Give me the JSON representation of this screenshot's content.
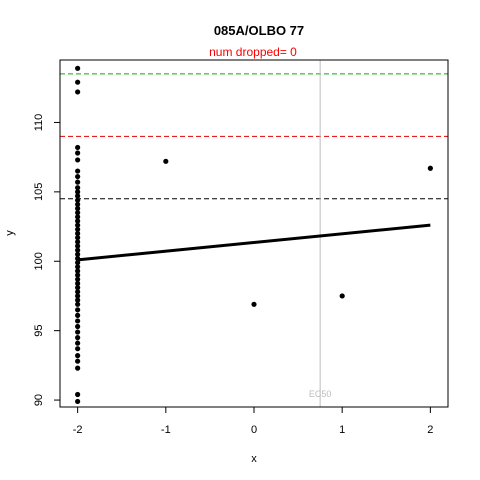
{
  "chart_data": {
    "type": "scatter",
    "title": "085A/OLBO 77",
    "subtitle": "num dropped= 0",
    "xlabel": "x",
    "ylabel": "y",
    "xlim": [
      -2.2,
      2.2
    ],
    "ylim": [
      89.5,
      114.5
    ],
    "xticks": [
      -2,
      -1,
      0,
      1,
      2
    ],
    "yticks": [
      90,
      95,
      100,
      105,
      110
    ],
    "xtick_labels": [
      "-2",
      "-1",
      "0",
      "1",
      "2"
    ],
    "ytick_labels": [
      "90",
      "95",
      "100",
      "105",
      "110"
    ],
    "grid": false,
    "points": [
      {
        "x": -2,
        "y": 113.9
      },
      {
        "x": -2,
        "y": 112.9
      },
      {
        "x": -2,
        "y": 112.2
      },
      {
        "x": -2,
        "y": 108.2
      },
      {
        "x": -2,
        "y": 107.8
      },
      {
        "x": -2,
        "y": 107.3
      },
      {
        "x": -2,
        "y": 106.5
      },
      {
        "x": -2,
        "y": 106.1
      },
      {
        "x": -2,
        "y": 105.7
      },
      {
        "x": -2,
        "y": 105.3
      },
      {
        "x": -2,
        "y": 105.0
      },
      {
        "x": -2,
        "y": 104.7
      },
      {
        "x": -2,
        "y": 104.4
      },
      {
        "x": -2,
        "y": 104.1
      },
      {
        "x": -2,
        "y": 103.8
      },
      {
        "x": -2,
        "y": 103.5
      },
      {
        "x": -2,
        "y": 103.2
      },
      {
        "x": -2,
        "y": 102.9
      },
      {
        "x": -2,
        "y": 102.6
      },
      {
        "x": -2,
        "y": 102.3
      },
      {
        "x": -2,
        "y": 102.0
      },
      {
        "x": -2,
        "y": 101.7
      },
      {
        "x": -2,
        "y": 101.4
      },
      {
        "x": -2,
        "y": 101.1
      },
      {
        "x": -2,
        "y": 100.8
      },
      {
        "x": -2,
        "y": 100.5
      },
      {
        "x": -2,
        "y": 100.2
      },
      {
        "x": -2,
        "y": 99.9
      },
      {
        "x": -2,
        "y": 99.6
      },
      {
        "x": -2,
        "y": 99.3
      },
      {
        "x": -2,
        "y": 99.0
      },
      {
        "x": -2,
        "y": 98.7
      },
      {
        "x": -2,
        "y": 98.4
      },
      {
        "x": -2,
        "y": 98.1
      },
      {
        "x": -2,
        "y": 97.8
      },
      {
        "x": -2,
        "y": 97.5
      },
      {
        "x": -2,
        "y": 97.2
      },
      {
        "x": -2,
        "y": 96.9
      },
      {
        "x": -2,
        "y": 96.5
      },
      {
        "x": -2,
        "y": 96.1
      },
      {
        "x": -2,
        "y": 95.7
      },
      {
        "x": -2,
        "y": 95.3
      },
      {
        "x": -2,
        "y": 94.9
      },
      {
        "x": -2,
        "y": 94.5
      },
      {
        "x": -2,
        "y": 94.1
      },
      {
        "x": -2,
        "y": 93.7
      },
      {
        "x": -2,
        "y": 93.2
      },
      {
        "x": -2,
        "y": 92.8
      },
      {
        "x": -2,
        "y": 92.3
      },
      {
        "x": -2,
        "y": 90.4
      },
      {
        "x": -2,
        "y": 89.9
      },
      {
        "x": -1,
        "y": 107.2
      },
      {
        "x": 0,
        "y": 96.9
      },
      {
        "x": 1,
        "y": 97.5
      },
      {
        "x": 2,
        "y": 106.7
      }
    ],
    "fit_line": {
      "x": [
        -2,
        2
      ],
      "y": [
        100.1,
        102.6
      ]
    },
    "hlines": [
      {
        "y": 113.5,
        "color": "#00b000"
      },
      {
        "y": 109.0,
        "color": "#e00000"
      },
      {
        "y": 104.5,
        "color": "#000000"
      }
    ],
    "vline": {
      "x": 0.75,
      "label": "EC50",
      "color": "#bdbdbd"
    },
    "colors": {
      "points": "#000000",
      "subtitle": "#ff0000",
      "axes": "#000000"
    }
  }
}
